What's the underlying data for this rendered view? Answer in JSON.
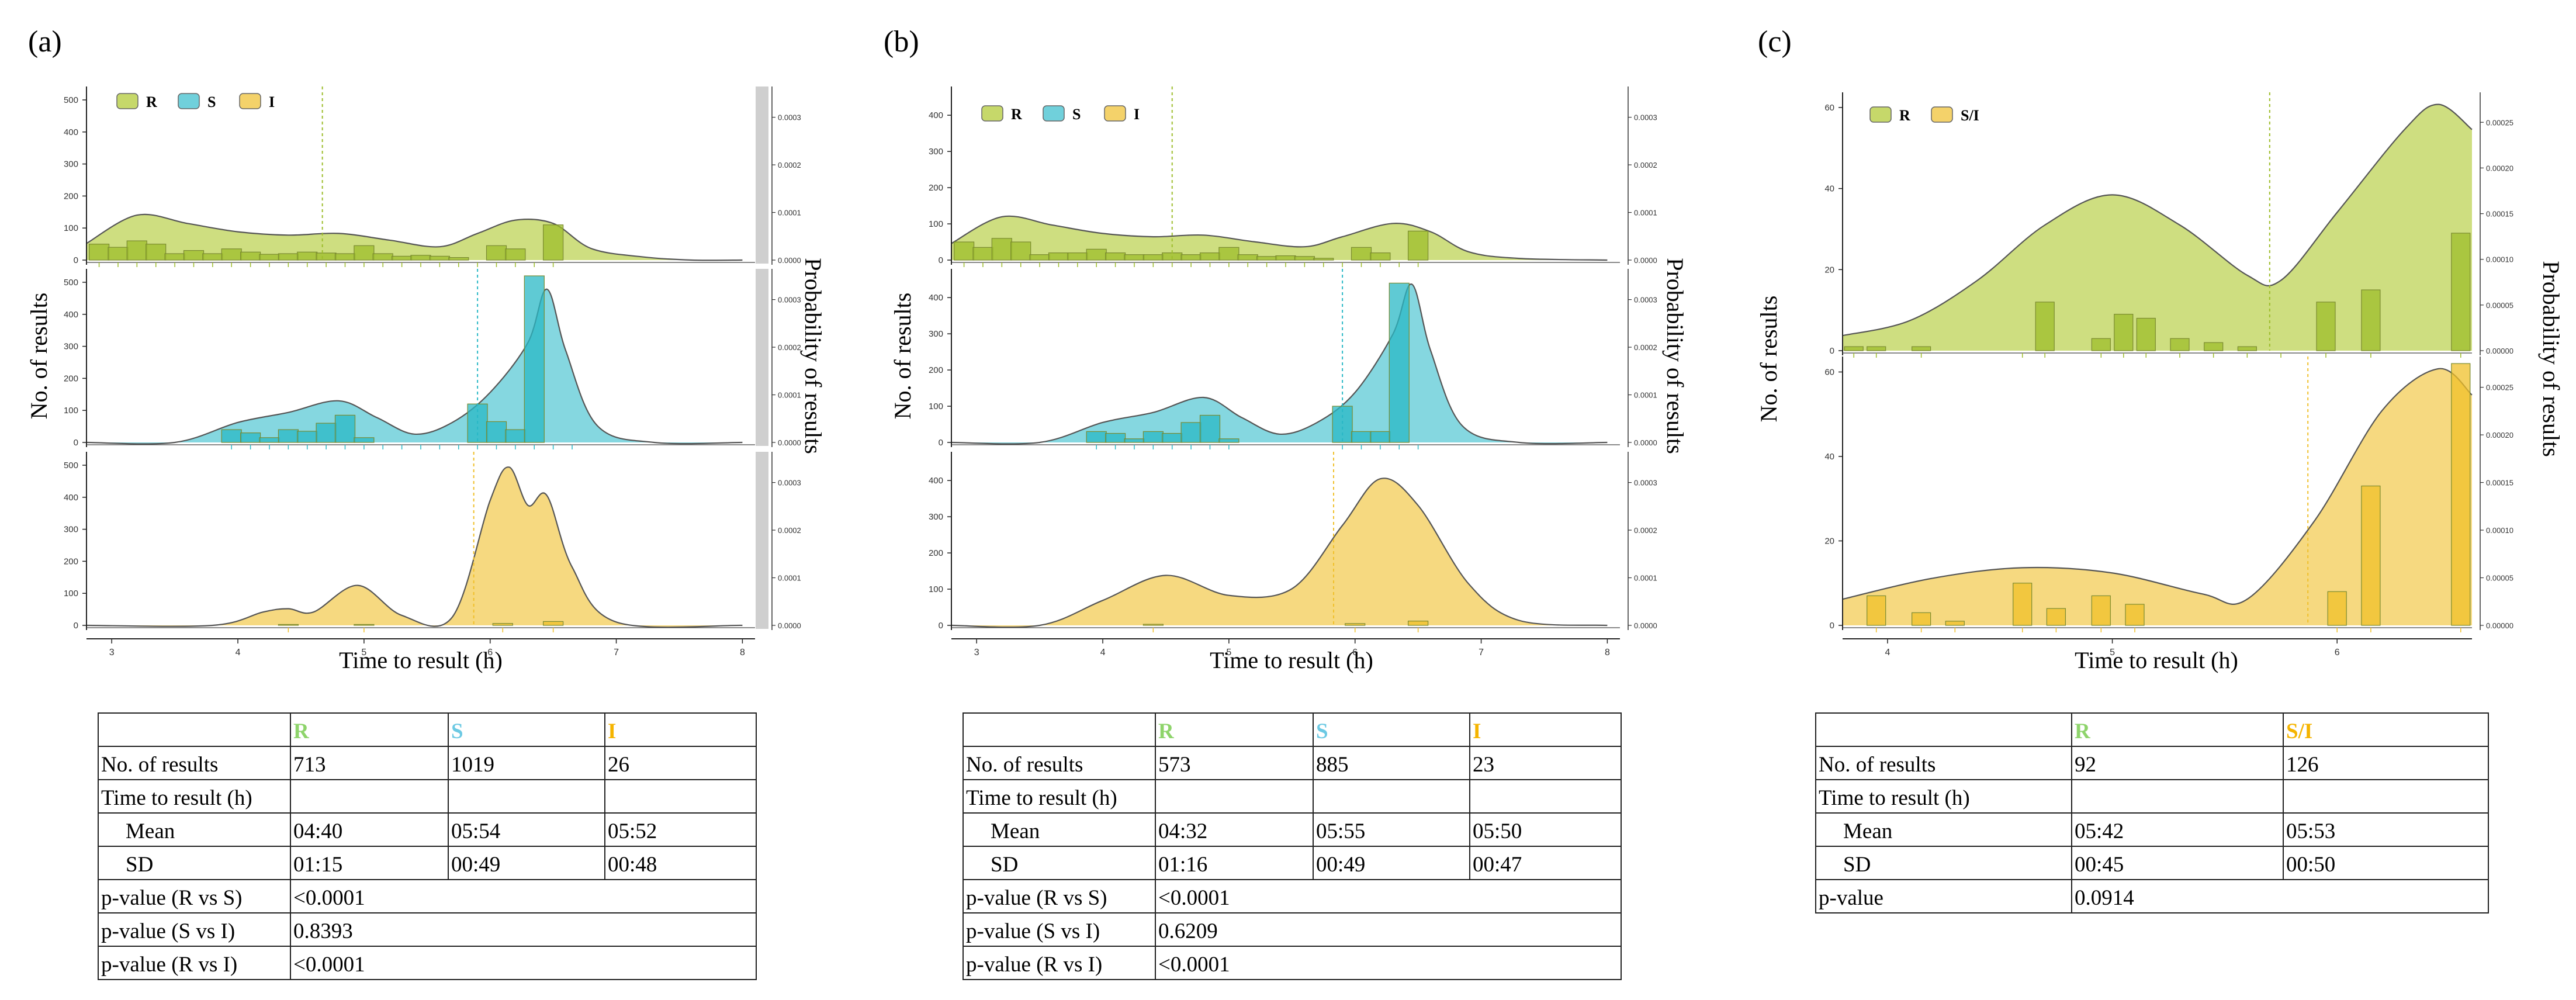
{
  "colors": {
    "R": "#9dbd2b",
    "R_light": "#c6d86a",
    "S": "#29b8c6",
    "S_light": "#70d0db",
    "I": "#f0c02a",
    "I_light": "#f4d26a",
    "axis": "#333333",
    "hdr_R": "#8ed46b",
    "hdr_S": "#6cc9e3",
    "hdr_I": "#f5b400"
  },
  "panels": [
    {
      "label": "(a)",
      "xlabel": "Time to result (h)",
      "ylabel": "No. of results",
      "ylabel2": "Probability of results",
      "legend": [
        "R",
        "S",
        "I"
      ],
      "table": {
        "headers": [
          "",
          "R",
          "S",
          "I"
        ],
        "rows": [
          [
            "No. of results",
            "713",
            "1019",
            "26"
          ],
          [
            "Time to result (h)",
            "",
            "",
            ""
          ],
          [
            "Mean",
            "04:40",
            "05:54",
            "05:52"
          ],
          [
            "SD",
            "01:15",
            "00:49",
            "00:48"
          ],
          [
            "p-value (R vs S)",
            "<0.0001"
          ],
          [
            "p-value (S vs I)",
            "0.8393"
          ],
          [
            "p-value (R vs I)",
            "<0.0001"
          ]
        ]
      }
    },
    {
      "label": "(b)",
      "xlabel": "Time to result (h)",
      "ylabel": "No. of results",
      "ylabel2": "Probability of results",
      "legend": [
        "R",
        "S",
        "I"
      ],
      "table": {
        "headers": [
          "",
          "R",
          "S",
          "I"
        ],
        "rows": [
          [
            "No. of results",
            "573",
            "885",
            "23"
          ],
          [
            "Time to result (h)",
            "",
            "",
            ""
          ],
          [
            "Mean",
            "04:32",
            "05:55",
            "05:50"
          ],
          [
            "SD",
            "01:16",
            "00:49",
            "00:47"
          ],
          [
            "p-value (R vs S)",
            "<0.0001"
          ],
          [
            "p-value (S vs I)",
            "0.6209"
          ],
          [
            "p-value (R vs I)",
            "<0.0001"
          ]
        ]
      }
    },
    {
      "label": "(c)",
      "xlabel": "Time to result (h)",
      "ylabel": "No. of results",
      "ylabel2": "Probability of results",
      "legend": [
        "R",
        "S/I"
      ],
      "table": {
        "headers": [
          "",
          "R",
          "S/I"
        ],
        "rows": [
          [
            "No. of results",
            "92",
            "126"
          ],
          [
            "Time to result (h)",
            "",
            ""
          ],
          [
            "Mean",
            "05:42",
            "05:53"
          ],
          [
            "SD",
            "00:45",
            "00:50"
          ],
          [
            "p-value",
            "0.0914"
          ]
        ]
      }
    }
  ],
  "chart_data": [
    {
      "panel": "(a)",
      "type": "histogram+density",
      "xlabel": "Time to result (h)",
      "ylabel": "No. of results",
      "ylabel2": "Probability of results",
      "xlim": [
        2.8,
        8.1
      ],
      "xticks": [
        3,
        4,
        5,
        6,
        7,
        8
      ],
      "facets": [
        {
          "group": "R",
          "ylim": [
            0,
            520
          ],
          "yticks": [
            0,
            100,
            200,
            300,
            400,
            500
          ],
          "y2ticks": [
            "0.0000",
            "0.0001",
            "0.0002",
            "0.0003"
          ],
          "vline": 4.67,
          "bin_centers": [
            2.9,
            3.05,
            3.2,
            3.35,
            3.5,
            3.65,
            3.8,
            3.95,
            4.1,
            4.25,
            4.4,
            4.55,
            4.7,
            4.85,
            5.0,
            5.15,
            5.3,
            5.45,
            5.6,
            5.75,
            5.9,
            6.05,
            6.2,
            6.35,
            6.5
          ],
          "counts": [
            50,
            40,
            60,
            50,
            20,
            30,
            20,
            35,
            25,
            18,
            20,
            25,
            22,
            20,
            45,
            20,
            12,
            15,
            12,
            8,
            0,
            45,
            35,
            0,
            110
          ],
          "density": [
            [
              2.8,
              0.1
            ],
            [
              3.2,
              0.27
            ],
            [
              3.6,
              0.22
            ],
            [
              4.0,
              0.17
            ],
            [
              4.4,
              0.15
            ],
            [
              4.8,
              0.16
            ],
            [
              5.2,
              0.12
            ],
            [
              5.6,
              0.08
            ],
            [
              5.9,
              0.16
            ],
            [
              6.2,
              0.24
            ],
            [
              6.5,
              0.22
            ],
            [
              6.8,
              0.07
            ],
            [
              7.2,
              0.02
            ],
            [
              7.6,
              0.0
            ],
            [
              8.0,
              0.0
            ]
          ]
        },
        {
          "group": "S",
          "ylim": [
            0,
            520
          ],
          "yticks": [
            0,
            100,
            200,
            300,
            400,
            500
          ],
          "y2ticks": [
            "0.0000",
            "0.0001",
            "0.0002",
            "0.0003"
          ],
          "vline": 5.9,
          "bin_centers": [
            3.95,
            4.1,
            4.25,
            4.4,
            4.55,
            4.7,
            4.85,
            5.0,
            5.15,
            5.3,
            5.45,
            5.6,
            5.75,
            5.9,
            6.05,
            6.2,
            6.35,
            6.5,
            6.65
          ],
          "counts": [
            40,
            30,
            15,
            40,
            35,
            60,
            85,
            15,
            0,
            0,
            0,
            0,
            0,
            120,
            65,
            40,
            520,
            0,
            0
          ],
          "density": [
            [
              2.8,
              0.0
            ],
            [
              3.5,
              0.0
            ],
            [
              4.0,
              0.12
            ],
            [
              4.4,
              0.18
            ],
            [
              4.8,
              0.25
            ],
            [
              5.1,
              0.15
            ],
            [
              5.4,
              0.05
            ],
            [
              5.7,
              0.12
            ],
            [
              6.0,
              0.3
            ],
            [
              6.3,
              0.6
            ],
            [
              6.45,
              0.92
            ],
            [
              6.6,
              0.55
            ],
            [
              6.85,
              0.1
            ],
            [
              7.3,
              0.0
            ],
            [
              8.0,
              0.0
            ]
          ]
        },
        {
          "group": "I",
          "ylim": [
            0,
            520
          ],
          "yticks": [
            0,
            100,
            200,
            300,
            400,
            500
          ],
          "y2ticks": [
            "0.0000",
            "0.0001",
            "0.0002",
            "0.0003"
          ],
          "vline": 5.87,
          "bin_centers": [
            4.4,
            5.0,
            6.1,
            6.5
          ],
          "counts": [
            3,
            3,
            6,
            12
          ],
          "density": [
            [
              2.8,
              0.0
            ],
            [
              3.8,
              0.0
            ],
            [
              4.2,
              0.08
            ],
            [
              4.4,
              0.1
            ],
            [
              4.6,
              0.08
            ],
            [
              4.95,
              0.24
            ],
            [
              5.3,
              0.06
            ],
            [
              5.7,
              0.05
            ],
            [
              6.0,
              0.75
            ],
            [
              6.15,
              0.95
            ],
            [
              6.3,
              0.72
            ],
            [
              6.45,
              0.78
            ],
            [
              6.65,
              0.35
            ],
            [
              7.0,
              0.02
            ],
            [
              8.0,
              0.0
            ]
          ]
        }
      ]
    },
    {
      "panel": "(b)",
      "type": "histogram+density",
      "xlabel": "Time to result (h)",
      "ylabel": "No. of results",
      "ylabel2": "Probability of results",
      "xlim": [
        2.8,
        8.1
      ],
      "xticks": [
        3,
        4,
        5,
        6,
        7,
        8
      ],
      "facets": [
        {
          "group": "R",
          "ylim": [
            0,
            460
          ],
          "yticks": [
            0,
            100,
            200,
            300,
            400
          ],
          "y2ticks": [
            "0.0000",
            "0.0001",
            "0.0002",
            "0.0003"
          ],
          "vline": 4.55,
          "bin_centers": [
            2.9,
            3.05,
            3.2,
            3.35,
            3.5,
            3.65,
            3.8,
            3.95,
            4.1,
            4.25,
            4.4,
            4.55,
            4.7,
            4.85,
            5.0,
            5.15,
            5.3,
            5.45,
            5.6,
            5.75,
            5.9,
            6.05,
            6.2,
            6.35,
            6.5
          ],
          "counts": [
            50,
            35,
            60,
            50,
            15,
            20,
            20,
            30,
            20,
            15,
            15,
            20,
            15,
            20,
            35,
            15,
            10,
            12,
            10,
            5,
            0,
            35,
            20,
            0,
            80
          ],
          "density": [
            [
              2.8,
              0.1
            ],
            [
              3.2,
              0.26
            ],
            [
              3.6,
              0.21
            ],
            [
              4.0,
              0.16
            ],
            [
              4.4,
              0.14
            ],
            [
              4.8,
              0.15
            ],
            [
              5.2,
              0.11
            ],
            [
              5.6,
              0.08
            ],
            [
              5.9,
              0.14
            ],
            [
              6.3,
              0.22
            ],
            [
              6.6,
              0.17
            ],
            [
              6.9,
              0.05
            ],
            [
              7.3,
              0.01
            ],
            [
              8.0,
              0.0
            ]
          ]
        },
        {
          "group": "S",
          "ylim": [
            0,
            460
          ],
          "yticks": [
            0,
            100,
            200,
            300,
            400
          ],
          "y2ticks": [
            "0.0000",
            "0.0001",
            "0.0002",
            "0.0003"
          ],
          "vline": 5.9,
          "bin_centers": [
            3.95,
            4.1,
            4.25,
            4.4,
            4.55,
            4.7,
            4.85,
            5.0,
            5.9,
            6.05,
            6.2,
            6.35,
            6.5
          ],
          "counts": [
            30,
            25,
            10,
            30,
            25,
            55,
            75,
            10,
            100,
            30,
            30,
            440,
            0
          ],
          "density": [
            [
              2.8,
              0.0
            ],
            [
              3.5,
              0.0
            ],
            [
              4.0,
              0.12
            ],
            [
              4.4,
              0.18
            ],
            [
              4.8,
              0.27
            ],
            [
              5.1,
              0.15
            ],
            [
              5.4,
              0.05
            ],
            [
              5.7,
              0.12
            ],
            [
              6.0,
              0.3
            ],
            [
              6.3,
              0.65
            ],
            [
              6.45,
              0.95
            ],
            [
              6.6,
              0.55
            ],
            [
              6.85,
              0.1
            ],
            [
              7.3,
              0.0
            ],
            [
              8.0,
              0.0
            ]
          ]
        },
        {
          "group": "I",
          "ylim": [
            0,
            460
          ],
          "yticks": [
            0,
            100,
            200,
            300,
            400
          ],
          "y2ticks": [
            "0.0000",
            "0.0001",
            "0.0002",
            "0.0003"
          ],
          "vline": 5.83,
          "bin_centers": [
            4.4,
            6.0,
            6.5
          ],
          "counts": [
            3,
            5,
            12
          ],
          "density": [
            [
              2.8,
              0.0
            ],
            [
              3.5,
              0.0
            ],
            [
              4.0,
              0.15
            ],
            [
              4.5,
              0.3
            ],
            [
              5.0,
              0.18
            ],
            [
              5.5,
              0.22
            ],
            [
              5.9,
              0.6
            ],
            [
              6.2,
              0.88
            ],
            [
              6.5,
              0.72
            ],
            [
              6.9,
              0.25
            ],
            [
              7.3,
              0.03
            ],
            [
              8.0,
              0.0
            ]
          ]
        }
      ]
    },
    {
      "panel": "(c)",
      "type": "histogram+density",
      "xlabel": "Time to result (h)",
      "ylabel": "No. of results",
      "ylabel2": "Probability of results",
      "xlim": [
        3.8,
        6.6
      ],
      "xticks": [
        4,
        5,
        6
      ],
      "facets": [
        {
          "group": "R",
          "ylim": [
            0,
            62
          ],
          "yticks": [
            0,
            20,
            40,
            60
          ],
          "y2ticks": [
            "0.00000",
            "0.00005",
            "0.00010",
            "0.00015",
            "0.00020",
            "0.00025"
          ],
          "vline": 5.7,
          "bin_centers": [
            3.85,
            3.95,
            4.15,
            4.6,
            4.7,
            4.95,
            5.05,
            5.15,
            5.3,
            5.45,
            5.6,
            5.75,
            5.95,
            6.15,
            6.55
          ],
          "counts": [
            1,
            1,
            1,
            0,
            12,
            3,
            9,
            8,
            3,
            2,
            1,
            0,
            12,
            15,
            29
          ],
          "density": [
            [
              3.8,
              0.06
            ],
            [
              4.1,
              0.12
            ],
            [
              4.4,
              0.28
            ],
            [
              4.7,
              0.5
            ],
            [
              5.0,
              0.62
            ],
            [
              5.3,
              0.5
            ],
            [
              5.6,
              0.3
            ],
            [
              5.75,
              0.28
            ],
            [
              6.0,
              0.55
            ],
            [
              6.3,
              0.88
            ],
            [
              6.45,
              0.98
            ],
            [
              6.6,
              0.88
            ]
          ]
        },
        {
          "group": "S/I",
          "ylim": [
            0,
            62
          ],
          "yticks": [
            0,
            20,
            40,
            60
          ],
          "y2ticks": [
            "0.00000",
            "0.00005",
            "0.00010",
            "0.00015",
            "0.00020",
            "0.00025"
          ],
          "vline": 5.87,
          "bin_centers": [
            3.95,
            4.15,
            4.3,
            4.6,
            4.75,
            4.95,
            5.1,
            6.0,
            6.15,
            6.55
          ],
          "counts": [
            7,
            3,
            1,
            10,
            4,
            7,
            5,
            8,
            33,
            62
          ],
          "density": [
            [
              3.8,
              0.1
            ],
            [
              4.2,
              0.18
            ],
            [
              4.6,
              0.22
            ],
            [
              5.0,
              0.2
            ],
            [
              5.4,
              0.12
            ],
            [
              5.6,
              0.1
            ],
            [
              5.9,
              0.4
            ],
            [
              6.2,
              0.82
            ],
            [
              6.45,
              0.98
            ],
            [
              6.6,
              0.88
            ]
          ]
        }
      ]
    }
  ]
}
